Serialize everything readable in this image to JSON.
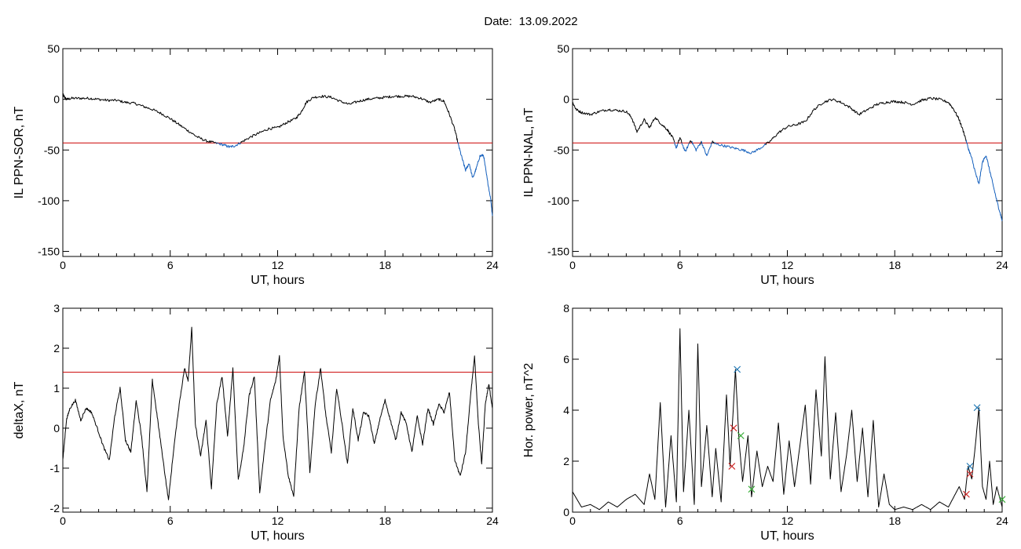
{
  "header": {
    "date_label": "Date:",
    "date_value": "13.09.2022"
  },
  "colors": {
    "axis": "#000000",
    "trace": "#000000",
    "threshold": "#cc0000",
    "below_threshold": "#1560bd",
    "marker_blue": "#1f77b4",
    "marker_red": "#cc2222",
    "marker_green": "#33aa33"
  },
  "chart_data": [
    {
      "id": "il-sor",
      "type": "line",
      "xlabel": "UT, hours",
      "ylabel": "IL PPN-SOR, nT",
      "xlim": [
        0,
        24
      ],
      "ylim": [
        -155,
        50
      ],
      "xticks": [
        0,
        6,
        12,
        18,
        24
      ],
      "yticks": [
        50,
        0,
        -50,
        -100,
        -150
      ],
      "threshold": -43,
      "highlight_below_threshold": true,
      "series": [
        {
          "x": [
            0,
            0.1,
            0.2,
            0.5,
            1,
            1.5,
            2,
            2.5,
            3,
            3.5,
            4,
            4.5,
            5,
            5.5,
            6,
            6.5,
            7,
            7.5,
            8,
            8.5,
            9,
            9.3,
            9.6,
            10,
            10.5,
            11,
            11.5,
            12,
            12.5,
            13,
            13.3,
            13.6,
            14,
            14.5,
            15,
            15.5,
            16,
            16.5,
            17,
            17.5,
            18,
            18.5,
            19,
            19.5,
            20,
            20.5,
            21,
            21.3,
            21.6,
            21.9,
            22.1,
            22.3,
            22.5,
            22.7,
            22.9,
            23.1,
            23.3,
            23.5,
            23.7,
            23.9,
            24
          ],
          "y": [
            5,
            2,
            0,
            1,
            1,
            1,
            0,
            -1,
            -1,
            -3,
            -4,
            -7,
            -10,
            -14,
            -19,
            -25,
            -31,
            -37,
            -41,
            -43,
            -45,
            -47,
            -46,
            -42,
            -37,
            -33,
            -29,
            -28,
            -23,
            -19,
            -13,
            -3,
            2,
            3,
            2,
            -2,
            -5,
            -2,
            0,
            1,
            2,
            3,
            3,
            3,
            1,
            -3,
            0,
            -2,
            -15,
            -30,
            -45,
            -58,
            -70,
            -63,
            -78,
            -68,
            -56,
            -55,
            -78,
            -98,
            -115
          ]
        }
      ]
    },
    {
      "id": "il-nal",
      "type": "line",
      "xlabel": "UT, hours",
      "ylabel": "IL PPN-NAL, nT",
      "xlim": [
        0,
        24
      ],
      "ylim": [
        -155,
        50
      ],
      "xticks": [
        0,
        6,
        12,
        18,
        24
      ],
      "yticks": [
        50,
        0,
        -50,
        -100,
        -150
      ],
      "threshold": -43,
      "highlight_below_threshold": true,
      "series": [
        {
          "x": [
            0,
            0.2,
            0.5,
            1,
            1.5,
            2,
            2.5,
            3,
            3.3,
            3.6,
            4,
            4.3,
            4.6,
            5,
            5.3,
            5.6,
            5.8,
            6,
            6.3,
            6.6,
            6.9,
            7.2,
            7.5,
            7.8,
            8,
            8.5,
            9,
            9.5,
            10,
            10.5,
            11,
            11.5,
            12,
            12.5,
            13,
            13.5,
            14,
            14.5,
            15,
            15.5,
            16,
            16.5,
            17,
            17.5,
            18,
            18.5,
            19,
            19.5,
            20,
            20.5,
            21,
            21.3,
            21.6,
            21.9,
            22.1,
            22.3,
            22.5,
            22.7,
            22.9,
            23.1,
            23.3,
            23.5,
            23.7,
            23.9,
            24
          ],
          "y": [
            -3,
            -10,
            -13,
            -15,
            -12,
            -10,
            -11,
            -12,
            -18,
            -32,
            -20,
            -28,
            -18,
            -25,
            -30,
            -38,
            -48,
            -38,
            -52,
            -40,
            -50,
            -42,
            -56,
            -42,
            -44,
            -46,
            -48,
            -50,
            -53,
            -48,
            -42,
            -33,
            -27,
            -25,
            -22,
            -10,
            -3,
            0,
            -3,
            -8,
            -15,
            -10,
            -5,
            -3,
            -2,
            -3,
            -5,
            -1,
            1,
            0,
            -3,
            -10,
            -20,
            -35,
            -48,
            -58,
            -72,
            -84,
            -62,
            -55,
            -70,
            -85,
            -100,
            -113,
            -120
          ]
        }
      ]
    },
    {
      "id": "delta-x",
      "type": "line",
      "xlabel": "UT, hours",
      "ylabel": "deltaX, nT",
      "xlim": [
        0,
        24
      ],
      "ylim": [
        -2.1,
        3.0
      ],
      "xticks": [
        0,
        6,
        12,
        18,
        24
      ],
      "yticks": [
        3,
        2,
        1,
        0,
        -1,
        -2
      ],
      "threshold": 1.4,
      "highlight_below_threshold": false,
      "series": [
        {
          "x": [
            0,
            0.2,
            0.4,
            0.7,
            1,
            1.3,
            1.6,
            2,
            2.3,
            2.6,
            2.9,
            3.2,
            3.5,
            3.8,
            4.1,
            4.4,
            4.7,
            5,
            5.3,
            5.6,
            5.9,
            6.2,
            6.5,
            6.8,
            7,
            7.2,
            7.4,
            7.7,
            8,
            8.3,
            8.6,
            8.9,
            9.2,
            9.5,
            9.8,
            10.1,
            10.4,
            10.7,
            11,
            11.3,
            11.6,
            11.9,
            12.1,
            12.3,
            12.6,
            12.9,
            13.2,
            13.5,
            13.8,
            14.1,
            14.4,
            14.7,
            15,
            15.3,
            15.6,
            15.9,
            16.2,
            16.5,
            16.8,
            17.1,
            17.4,
            17.7,
            18,
            18.3,
            18.6,
            18.9,
            19.2,
            19.5,
            19.8,
            20.1,
            20.4,
            20.7,
            21,
            21.3,
            21.6,
            21.9,
            22.2,
            22.5,
            22.8,
            23,
            23.2,
            23.4,
            23.6,
            23.8,
            24
          ],
          "y": [
            -0.8,
            0.2,
            0.5,
            0.7,
            0.2,
            0.5,
            0.4,
            -0.1,
            -0.5,
            -0.8,
            0.3,
            1.0,
            -0.3,
            -0.6,
            0.7,
            -0.2,
            -1.6,
            1.2,
            0.2,
            -0.8,
            -1.8,
            -0.5,
            0.6,
            1.5,
            1.2,
            2.5,
            0.1,
            -0.7,
            0.2,
            -1.5,
            0.6,
            1.3,
            -0.2,
            1.5,
            -1.3,
            -0.5,
            0.8,
            1.3,
            -1.6,
            -0.4,
            0.7,
            1.2,
            1.8,
            -0.2,
            -1.2,
            -1.7,
            0.5,
            1.4,
            -1.1,
            0.6,
            1.5,
            0.3,
            -0.6,
            1.0,
            0.1,
            -0.9,
            0.5,
            -0.3,
            0.4,
            0.3,
            -0.4,
            0.2,
            0.7,
            0.2,
            -0.3,
            0.4,
            0.1,
            -0.6,
            0.3,
            -0.4,
            0.5,
            0.1,
            0.6,
            0.4,
            0.9,
            -0.8,
            -1.2,
            -0.6,
            0.9,
            1.8,
            0.2,
            -0.9,
            0.6,
            1.1,
            0.5
          ]
        }
      ]
    },
    {
      "id": "hor-power",
      "type": "line",
      "xlabel": "UT, hours",
      "ylabel": "Hor. power, nT^2",
      "xlim": [
        0,
        24
      ],
      "ylim": [
        0,
        8
      ],
      "xticks": [
        0,
        6,
        12,
        18,
        24
      ],
      "yticks": [
        8,
        6,
        4,
        2,
        0
      ],
      "threshold": null,
      "highlight_below_threshold": false,
      "series": [
        {
          "x": [
            0,
            0.5,
            1,
            1.5,
            2,
            2.5,
            3,
            3.5,
            4,
            4.3,
            4.6,
            4.9,
            5.2,
            5.5,
            5.8,
            6.0,
            6.2,
            6.5,
            6.8,
            7.0,
            7.2,
            7.5,
            7.8,
            8.0,
            8.3,
            8.6,
            8.8,
            9.1,
            9.3,
            9.5,
            9.8,
            10.0,
            10.3,
            10.6,
            10.9,
            11.2,
            11.5,
            11.8,
            12.1,
            12.4,
            12.7,
            13.0,
            13.3,
            13.6,
            13.9,
            14.1,
            14.4,
            14.7,
            15.0,
            15.3,
            15.6,
            15.9,
            16.2,
            16.5,
            16.8,
            17.1,
            17.4,
            17.7,
            18.0,
            18.5,
            19,
            19.5,
            20,
            20.5,
            21,
            21.3,
            21.6,
            21.9,
            22.1,
            22.3,
            22.5,
            22.7,
            22.9,
            23.1,
            23.3,
            23.5,
            23.7,
            24
          ],
          "y": [
            0.8,
            0.2,
            0.3,
            0.1,
            0.4,
            0.2,
            0.5,
            0.7,
            0.3,
            1.5,
            0.5,
            4.3,
            0.2,
            3.0,
            0.4,
            7.2,
            0.8,
            4.0,
            0.3,
            6.6,
            1.0,
            3.4,
            0.6,
            2.5,
            0.4,
            4.6,
            1.8,
            5.6,
            2.8,
            1.2,
            3.0,
            0.6,
            2.4,
            1.0,
            1.8,
            1.2,
            3.5,
            0.7,
            2.8,
            1.0,
            2.6,
            4.2,
            1.1,
            4.8,
            2.2,
            6.1,
            1.3,
            3.9,
            0.8,
            2.2,
            4.0,
            1.2,
            3.3,
            0.6,
            3.6,
            0.2,
            1.5,
            0.3,
            0.1,
            0.2,
            0.1,
            0.3,
            0.1,
            0.4,
            0.2,
            0.6,
            1.0,
            0.5,
            1.8,
            1.3,
            2.6,
            4.1,
            1.0,
            0.5,
            2.0,
            0.3,
            1.0,
            0.2
          ]
        }
      ],
      "markers": [
        {
          "x": 9.2,
          "y": 5.6,
          "color": "blue"
        },
        {
          "x": 9.0,
          "y": 3.3,
          "color": "red"
        },
        {
          "x": 9.4,
          "y": 3.0,
          "color": "green"
        },
        {
          "x": 8.9,
          "y": 1.8,
          "color": "red"
        },
        {
          "x": 10.0,
          "y": 0.9,
          "color": "green"
        },
        {
          "x": 22.6,
          "y": 4.1,
          "color": "blue"
        },
        {
          "x": 22.2,
          "y": 1.8,
          "color": "blue"
        },
        {
          "x": 22.2,
          "y": 1.5,
          "color": "red"
        },
        {
          "x": 22.0,
          "y": 0.7,
          "color": "red"
        },
        {
          "x": 24.0,
          "y": 0.5,
          "color": "green"
        }
      ]
    }
  ]
}
